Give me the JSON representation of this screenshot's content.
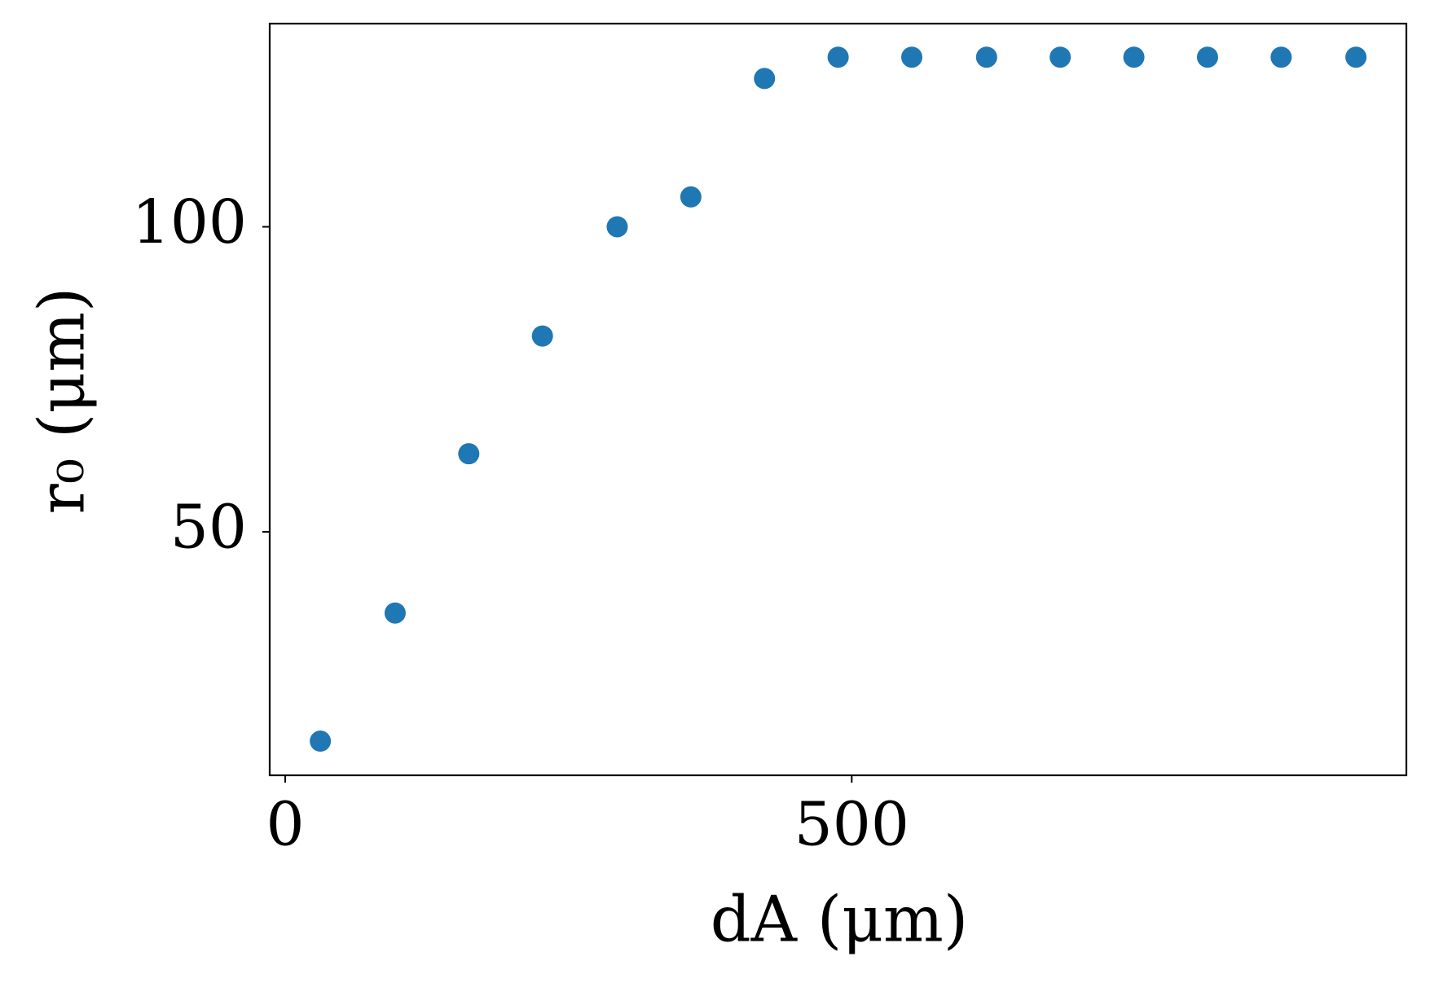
{
  "chart_data": {
    "type": "scatter",
    "x_label": "dA (μm)",
    "y_label": "r₀ (μm)",
    "x": [
      31,
      97,
      162,
      227,
      293,
      358,
      423,
      488,
      553,
      619,
      684,
      749,
      814,
      879,
      945
    ],
    "series": [
      {
        "color": "#1f77b4",
        "values": [
          15.7,
          36.7,
          62.8,
          82.1,
          100,
          104.9,
          124.3,
          127.8,
          127.8,
          127.8,
          127.8,
          127.8,
          127.8,
          127.8,
          127.8
        ]
      }
    ],
    "xlim": [
      -13.7,
      989.5
    ],
    "ylim": [
      10.1,
      133.3
    ],
    "xticks": [
      0,
      500
    ],
    "yticks": [
      50,
      100
    ]
  }
}
